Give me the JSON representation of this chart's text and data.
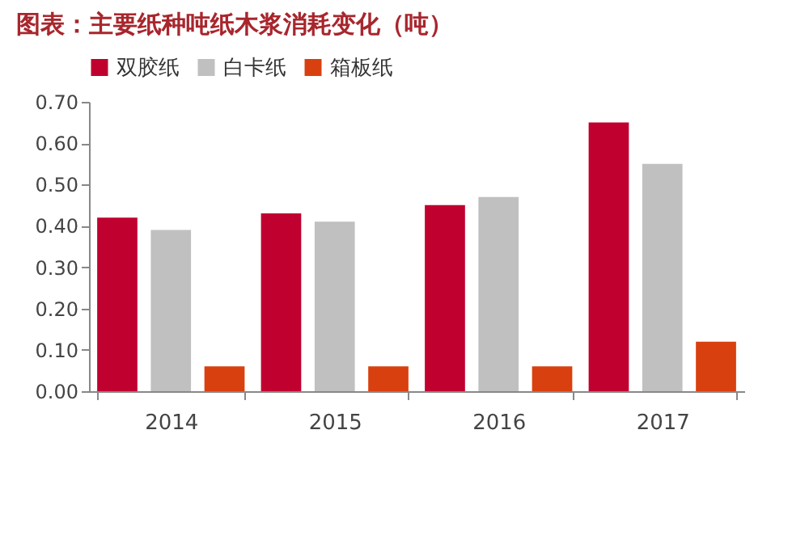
{
  "chart_data": {
    "type": "bar",
    "title": "图表：主要纸种吨纸木浆消耗变化（吨）",
    "categories": [
      "2014",
      "2015",
      "2016",
      "2017"
    ],
    "series": [
      {
        "name": "双胶纸",
        "color": "#c0002f",
        "values": [
          0.42,
          0.43,
          0.45,
          0.65
        ]
      },
      {
        "name": "白卡纸",
        "color": "#c0c0c0",
        "values": [
          0.39,
          0.41,
          0.47,
          0.55
        ]
      },
      {
        "name": "箱板纸",
        "color": "#d9400f",
        "values": [
          0.06,
          0.06,
          0.06,
          0.12
        ]
      }
    ],
    "ylim": [
      0,
      0.7
    ],
    "yticks": [
      {
        "value": 0,
        "label": "0.00"
      },
      {
        "value": 0.1,
        "label": "0.10"
      },
      {
        "value": 0.2,
        "label": "0.20"
      },
      {
        "value": 0.3,
        "label": "0.30"
      },
      {
        "value": 0.4,
        "label": "0.40"
      },
      {
        "value": 0.5,
        "label": "0.50"
      },
      {
        "value": 0.6,
        "label": "0.60"
      },
      {
        "value": 0.7,
        "label": "0.70"
      }
    ],
    "legend": "top"
  }
}
